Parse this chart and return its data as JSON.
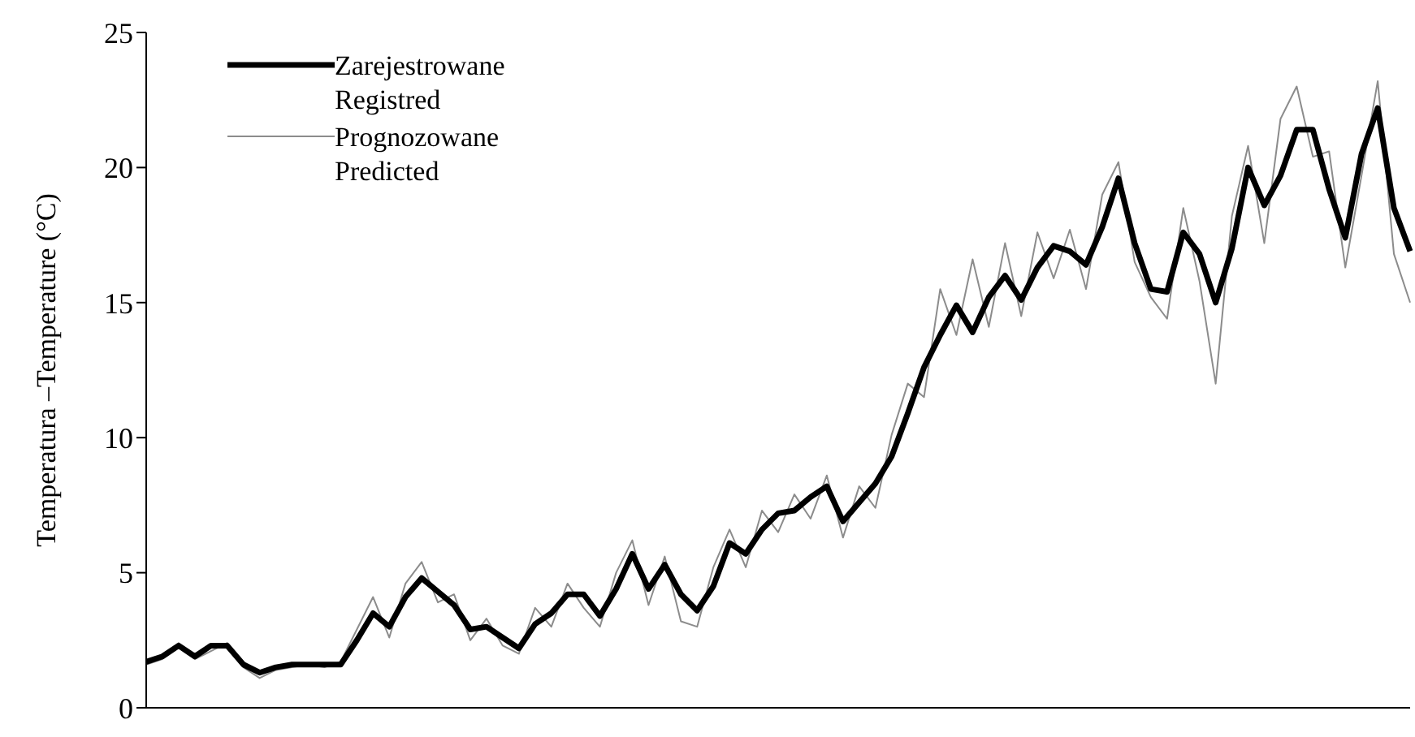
{
  "chart_data": {
    "type": "line",
    "ylabel": "Temperatura –Temperature (°C)",
    "categories": [
      null,
      null,
      null,
      null,
      null,
      null,
      null,
      null,
      null,
      null,
      null,
      null,
      null,
      null,
      null,
      null,
      null,
      null,
      null,
      null,
      null,
      null,
      null,
      null,
      null,
      null,
      null,
      null,
      null,
      null,
      null,
      null,
      null,
      null,
      null,
      null,
      null,
      null,
      null,
      null,
      null,
      null,
      null,
      null,
      null,
      null,
      null,
      null,
      null,
      null,
      null,
      null,
      null,
      null,
      null,
      null,
      null,
      null,
      null,
      null,
      null,
      null,
      null,
      null,
      null,
      null,
      null,
      null,
      null,
      null,
      null,
      null,
      null,
      null,
      null,
      null,
      null,
      null,
      null
    ],
    "ylim": [
      0,
      25
    ],
    "yticks": [
      0,
      5,
      10,
      15,
      20,
      25
    ],
    "grid": false,
    "legend": "top left",
    "marker": "none",
    "line_style": "solid",
    "tick_labels": "y",
    "series": [
      {
        "name": "Zarejestrowane\nRegistred",
        "color": "#000000",
        "values": [
          1.7,
          1.9,
          2.3,
          1.9,
          2.3,
          2.3,
          1.6,
          1.3,
          1.5,
          1.6,
          1.6,
          1.6,
          1.6,
          2.5,
          3.5,
          3.0,
          4.1,
          4.8,
          4.3,
          3.8,
          2.9,
          3.0,
          2.6,
          2.2,
          3.1,
          3.5,
          4.2,
          4.2,
          3.4,
          4.4,
          5.7,
          4.4,
          5.3,
          4.2,
          3.6,
          4.5,
          6.1,
          5.7,
          6.6,
          7.2,
          7.3,
          7.8,
          8.2,
          6.9,
          7.6,
          8.3,
          9.3,
          10.9,
          12.6,
          13.8,
          14.9,
          13.9,
          15.2,
          16.0,
          15.1,
          16.3,
          17.1,
          16.9,
          16.4,
          17.8,
          19.6,
          17.2,
          15.5,
          15.4,
          17.6,
          16.8,
          15.0,
          17.0,
          20.0,
          18.6,
          19.7,
          21.4,
          21.4,
          19.2,
          17.4,
          20.5,
          22.2,
          18.5,
          16.9
        ]
      },
      {
        "name": "Prognozowane\nPredicted",
        "color": "#8c8c8c",
        "values": [
          1.6,
          1.8,
          2.4,
          1.8,
          2.1,
          2.4,
          1.5,
          1.1,
          1.4,
          1.5,
          1.6,
          1.5,
          1.7,
          2.9,
          4.1,
          2.6,
          4.6,
          5.4,
          3.9,
          4.2,
          2.5,
          3.3,
          2.3,
          2.0,
          3.7,
          3.0,
          4.6,
          3.7,
          3.0,
          5.0,
          6.2,
          3.8,
          5.6,
          3.2,
          3.0,
          5.2,
          6.6,
          5.2,
          7.3,
          6.5,
          7.9,
          7.0,
          8.6,
          6.3,
          8.2,
          7.4,
          10.1,
          12.0,
          11.5,
          15.5,
          13.8,
          16.6,
          14.1,
          17.2,
          14.5,
          17.6,
          15.9,
          17.7,
          15.5,
          19.0,
          20.2,
          16.5,
          15.2,
          14.4,
          18.5,
          15.8,
          12.0,
          18.2,
          20.8,
          17.2,
          21.8,
          23.0,
          20.4,
          20.6,
          16.3,
          19.7,
          23.2,
          16.8,
          15.0
        ]
      }
    ]
  }
}
